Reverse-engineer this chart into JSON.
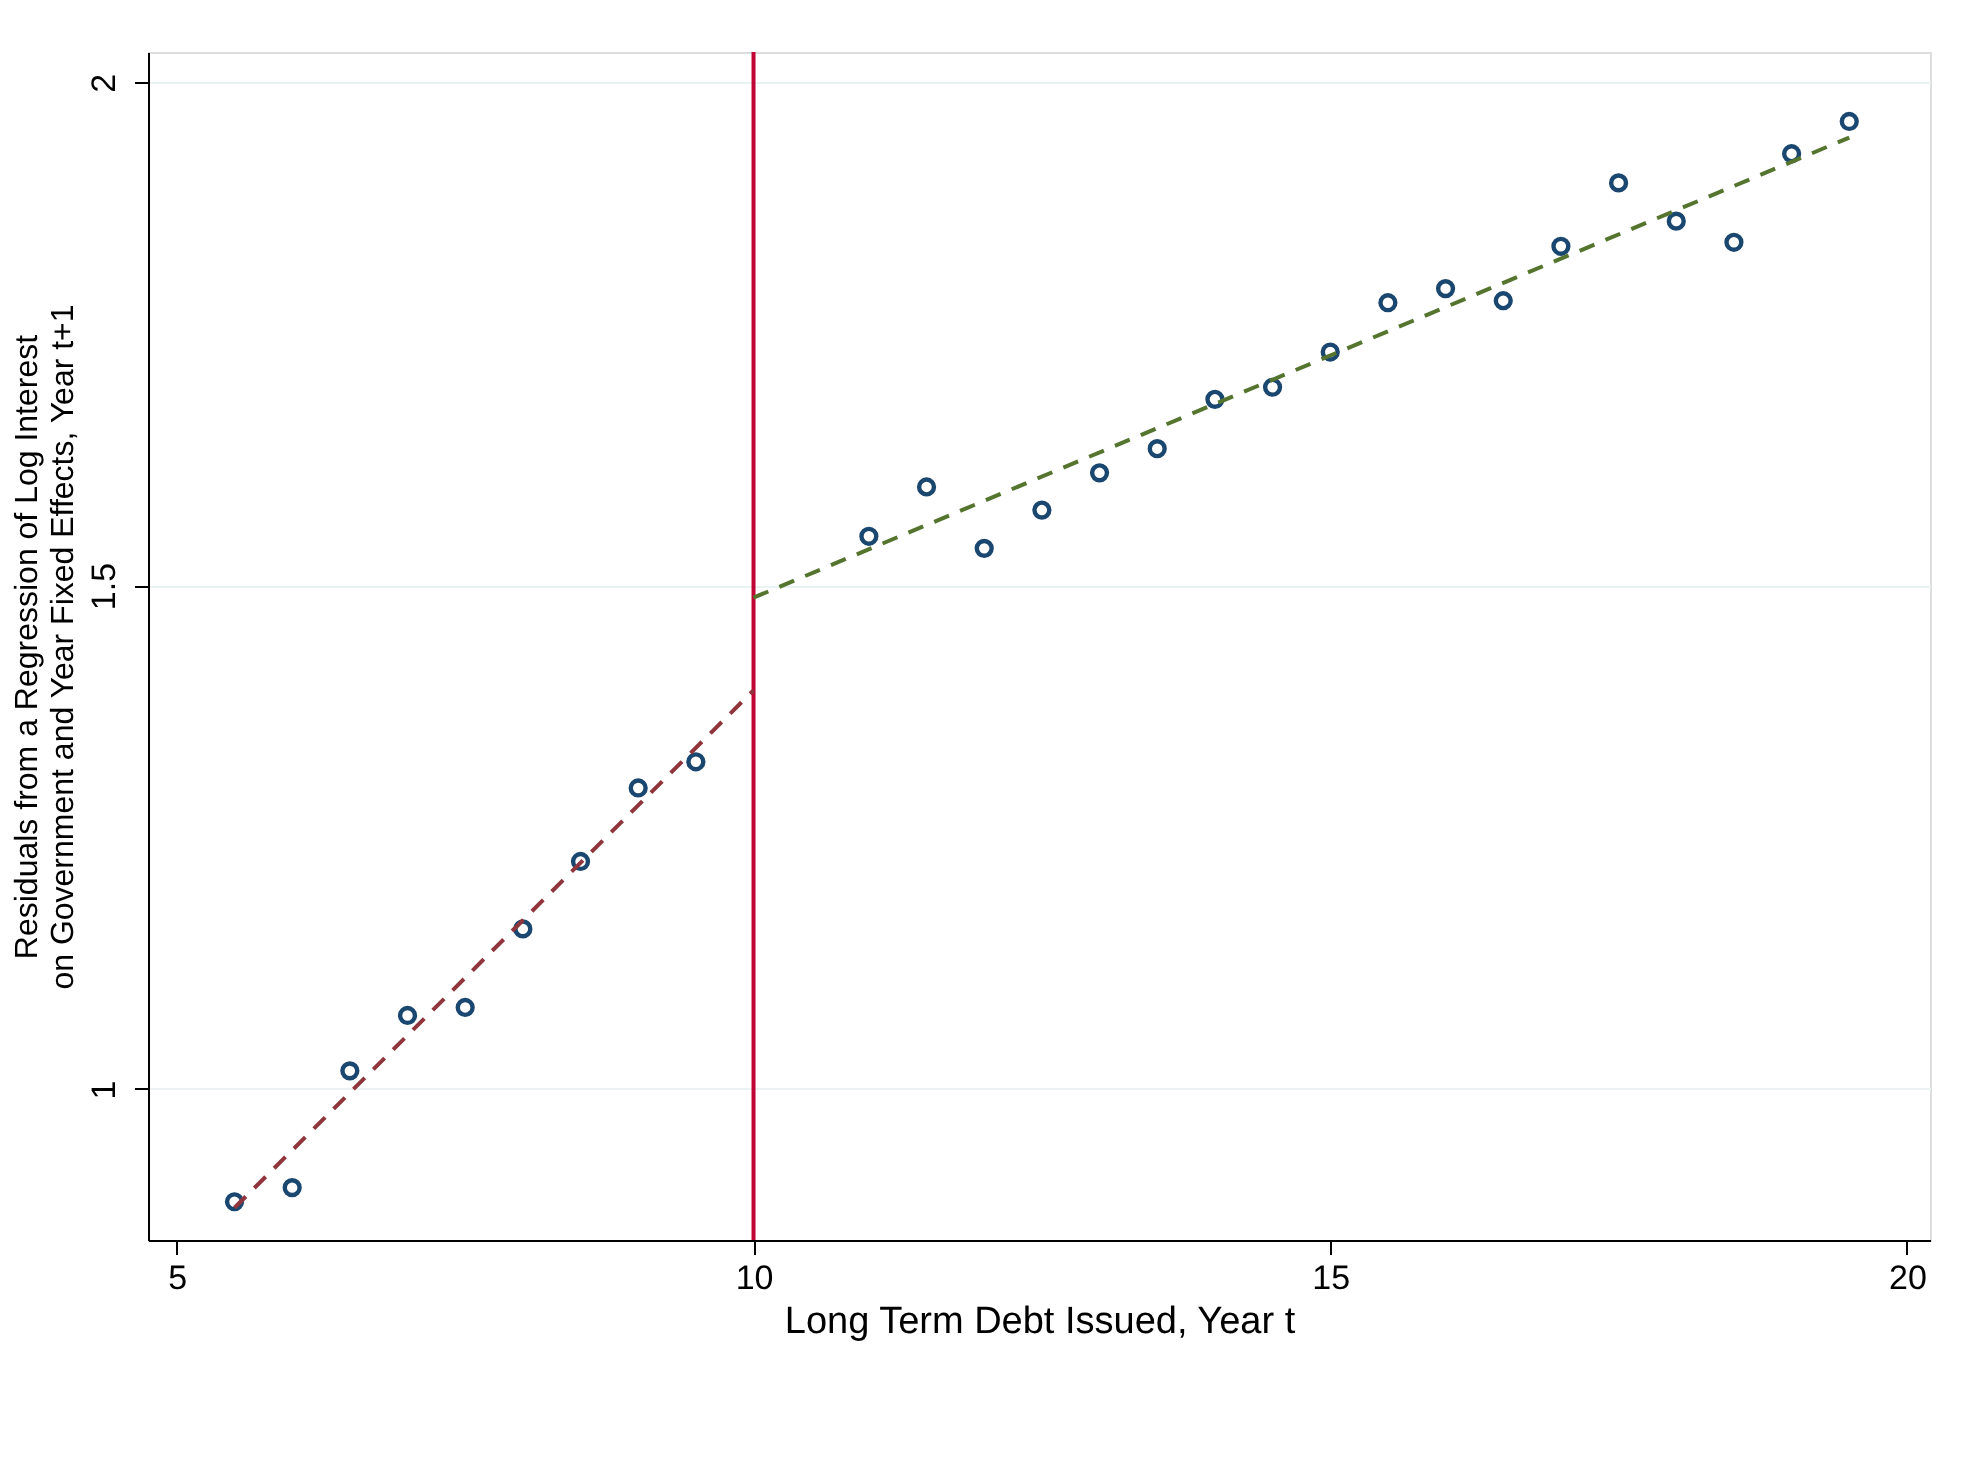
{
  "chart_data": {
    "type": "scatter",
    "xlabel": "Long Term Debt Issued, Year t",
    "ylabel": "Residuals from a Regression of Log Interest\non Government and Year Fixed Effects, Year t+1",
    "xlim": [
      4.75,
      20.2
    ],
    "ylim": [
      0.85,
      2.03
    ],
    "xticks": [
      5,
      10,
      15,
      20
    ],
    "yticks": [
      1,
      1.5,
      2
    ],
    "grid": "y",
    "series": [
      {
        "color": "#1a476f",
        "marker": "circle",
        "x": [
          5.5,
          6,
          6.5,
          7,
          7.5,
          8,
          8.5,
          9,
          9.5,
          11,
          11.5,
          12,
          12.5,
          13,
          13.5,
          14,
          14.5,
          15,
          15.5,
          16,
          16.5,
          17,
          17.5,
          18,
          18.5,
          19,
          19.5
        ],
        "values": [
          0.888,
          0.902,
          1.018,
          1.073,
          1.081,
          1.159,
          1.226,
          1.299,
          1.325,
          1.549,
          1.598,
          1.537,
          1.575,
          1.612,
          1.636,
          1.685,
          1.697,
          1.732,
          1.781,
          1.795,
          1.783,
          1.837,
          1.9,
          1.862,
          1.841,
          1.929,
          1.961
        ]
      },
      {
        "type": "line",
        "color": "#90353b",
        "line_style": "dashed",
        "x": [
          5.5,
          10
        ],
        "values": [
          0.882,
          1.396
        ]
      },
      {
        "type": "line",
        "color": "#55752f",
        "line_style": "dashed",
        "x": [
          10,
          19.5
        ],
        "values": [
          1.488,
          1.945
        ]
      }
    ],
    "ref_lines": [
      {
        "axis": "x",
        "value": 10,
        "color": "#c10534",
        "line_style": "solid"
      }
    ]
  }
}
